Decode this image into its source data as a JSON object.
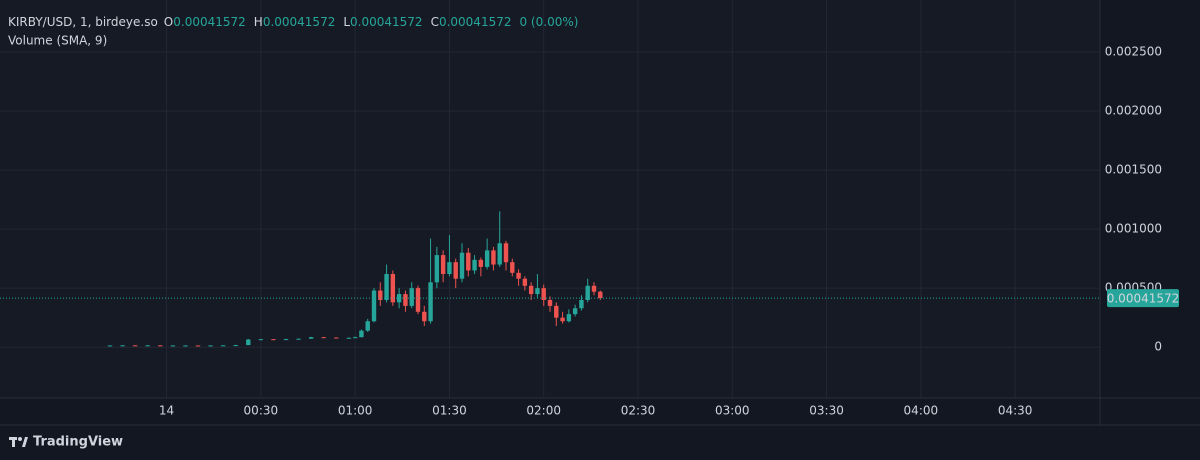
{
  "chart_data": {
    "type": "candlestick",
    "legend": {
      "symbol": "KIRBY/USD, 1, birdeye.so",
      "items": [
        {
          "label": "O",
          "value": "0.00041572"
        },
        {
          "label": "H",
          "value": "0.00041572"
        },
        {
          "label": "L",
          "value": "0.00041572"
        },
        {
          "label": "C",
          "value": "0.00041572"
        }
      ],
      "change": "0 (0.00%)",
      "indicator": "Volume (SMA, 9)"
    },
    "watermark": "TradingView",
    "up_color": "#26a69a",
    "down_color": "#ef5350",
    "grid": true,
    "last_price_color": "#26a69a",
    "xlim": [
      -53,
      297
    ],
    "xticks": [
      {
        "value": 0,
        "label": "14"
      },
      {
        "value": 30,
        "label": "00:30"
      },
      {
        "value": 60,
        "label": "01:00"
      },
      {
        "value": 90,
        "label": "01:30"
      },
      {
        "value": 120,
        "label": "02:00"
      },
      {
        "value": 150,
        "label": "02:30"
      },
      {
        "value": 180,
        "label": "03:00"
      },
      {
        "value": 210,
        "label": "03:30"
      },
      {
        "value": 240,
        "label": "04:00"
      },
      {
        "value": 270,
        "label": "04:30"
      }
    ],
    "ylim": [
      -0.00043,
      0.00294
    ],
    "yticks": [
      0,
      {
        "value": 0.0005,
        "label": "0.000500"
      },
      {
        "value": 0.001,
        "label": "0.001000"
      },
      {
        "value": 0.0015,
        "label": "0.001500"
      },
      {
        "value": 0.002,
        "label": "0.002000"
      },
      {
        "value": 0.0025,
        "label": "0.002500"
      }
    ],
    "x": [
      -18,
      -14,
      -10,
      -6,
      -2,
      2,
      6,
      10,
      14,
      18,
      22,
      26,
      30,
      34,
      38,
      42,
      46,
      50,
      54,
      58,
      60,
      62,
      64,
      66,
      68,
      70,
      72,
      74,
      76,
      78,
      80,
      82,
      84,
      86,
      88,
      90,
      92,
      94,
      96,
      98,
      100,
      102,
      104,
      106,
      108,
      110,
      112,
      114,
      116,
      118,
      120,
      122,
      124,
      126,
      128,
      130,
      132,
      134,
      136,
      138
    ],
    "open": [
      1.4e-05,
      1.5e-05,
      1.6e-05,
      1.5e-05,
      1.6e-05,
      1.4e-05,
      1.5e-05,
      1.5e-05,
      1.4e-05,
      1.5e-05,
      1.6e-05,
      1.8e-05,
      6.5e-05,
      6.8e-05,
      6.6e-05,
      6.9e-05,
      7.2e-05,
      8.5e-05,
      8.2e-05,
      7.8e-05,
      8e-05,
      8.5e-05,
      0.00014,
      0.00022,
      0.00048,
      0.0004,
      0.00062,
      0.00038,
      0.00045,
      0.00035,
      0.0005,
      0.0003,
      0.00022,
      0.00055,
      0.00078,
      0.00062,
      0.00072,
      0.00058,
      0.0008,
      0.00065,
      0.00074,
      0.00068,
      0.00082,
      0.0007,
      0.00088,
      0.00072,
      0.00063,
      0.00058,
      0.00052,
      0.00045,
      0.0005,
      0.0004,
      0.00035,
      0.00025,
      0.00022,
      0.00028,
      0.00033,
      0.0004,
      0.00052,
      0.00047
    ],
    "high": [
      1.6e-05,
      1.7e-05,
      1.6e-05,
      1.7e-05,
      1.6e-05,
      1.6e-05,
      1.6e-05,
      1.5e-05,
      1.6e-05,
      1.7e-05,
      2e-05,
      7e-05,
      7e-05,
      6.9e-05,
      7.1e-05,
      7.4e-05,
      8.8e-05,
      8.6e-05,
      8.3e-05,
      8.2e-05,
      9e-05,
      0.00015,
      0.00024,
      0.0005,
      0.00055,
      0.0007,
      0.00065,
      0.0005,
      0.00048,
      0.00055,
      0.00052,
      0.00035,
      0.00092,
      0.00085,
      0.00082,
      0.00095,
      0.00075,
      0.00088,
      0.00084,
      0.00078,
      0.00076,
      0.00092,
      0.00085,
      0.00115,
      0.0009,
      0.00075,
      0.00066,
      0.0006,
      0.00055,
      0.00062,
      0.00053,
      0.00043,
      0.00038,
      0.0003,
      0.00032,
      0.00036,
      0.00044,
      0.00058,
      0.00055,
      0.00048
    ],
    "low": [
      1.3e-05,
      1.4e-05,
      1.4e-05,
      1.5e-05,
      1.3e-05,
      1.4e-05,
      1.4e-05,
      1.3e-05,
      1.4e-05,
      1.5e-05,
      1.6e-05,
      1.8e-05,
      6.3e-05,
      6.4e-05,
      6.5e-05,
      6.8e-05,
      7.1e-05,
      8e-05,
      7.6e-05,
      7.7e-05,
      7.9e-05,
      8.4e-05,
      0.00013,
      0.00021,
      0.00035,
      0.00038,
      0.00035,
      0.00033,
      0.0003,
      0.00033,
      0.00028,
      0.00018,
      0.0002,
      0.0005,
      0.00055,
      0.0006,
      0.0005,
      0.00055,
      0.0006,
      0.00062,
      0.0006,
      0.00066,
      0.00065,
      0.00068,
      0.00065,
      0.0006,
      0.00052,
      0.00048,
      0.0004,
      0.00042,
      0.00035,
      0.0003,
      0.00018,
      0.0002,
      0.00021,
      0.00026,
      0.00031,
      0.00038,
      0.00044,
      0.0004
    ],
    "close": [
      1.5e-05,
      1.6e-05,
      1.5e-05,
      1.6e-05,
      1.4e-05,
      1.5e-05,
      1.5e-05,
      1.4e-05,
      1.5e-05,
      1.6e-05,
      1.8e-05,
      6.5e-05,
      6.8e-05,
      6.6e-05,
      6.9e-05,
      7.2e-05,
      8.5e-05,
      8.2e-05,
      7.8e-05,
      8e-05,
      8.5e-05,
      0.00014,
      0.00022,
      0.00048,
      0.0004,
      0.00062,
      0.00038,
      0.00045,
      0.00035,
      0.0005,
      0.0003,
      0.00022,
      0.00055,
      0.00078,
      0.00062,
      0.00072,
      0.00058,
      0.0008,
      0.00065,
      0.00074,
      0.00068,
      0.00082,
      0.0007,
      0.00088,
      0.00072,
      0.00063,
      0.00058,
      0.00052,
      0.00045,
      0.0005,
      0.0004,
      0.00035,
      0.00025,
      0.00022,
      0.00028,
      0.00033,
      0.0004,
      0.00052,
      0.00047,
      0.00041572
    ]
  }
}
